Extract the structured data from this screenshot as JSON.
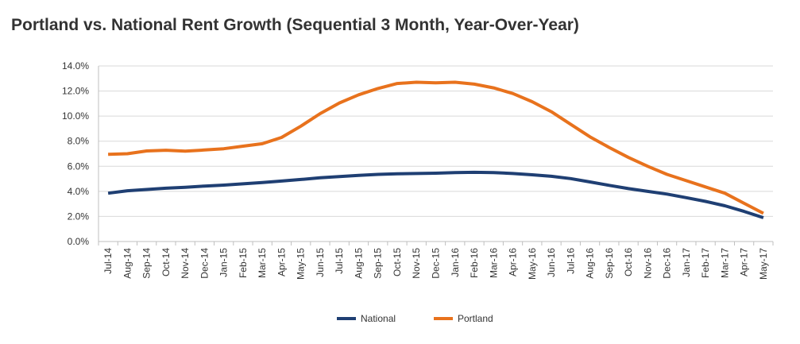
{
  "chart_data": {
    "type": "line",
    "title": "Portland vs. National Rent Growth (Sequential 3 Month, Year-Over-Year)",
    "xlabel": "",
    "ylabel": "",
    "ylim": [
      0,
      14
    ],
    "y_ticks": [
      0,
      2,
      4,
      6,
      8,
      10,
      12,
      14
    ],
    "y_tick_labels": [
      "0.0%",
      "2.0%",
      "4.0%",
      "6.0%",
      "8.0%",
      "10.0%",
      "12.0%",
      "14.0%"
    ],
    "grid": true,
    "legend_position": "bottom-center",
    "categories": [
      "Jul-14",
      "Aug-14",
      "Sep-14",
      "Oct-14",
      "Nov-14",
      "Dec-14",
      "Jan-15",
      "Feb-15",
      "Mar-15",
      "Apr-15",
      "May-15",
      "Jun-15",
      "Jul-15",
      "Aug-15",
      "Sep-15",
      "Oct-15",
      "Nov-15",
      "Dec-15",
      "Jan-16",
      "Feb-16",
      "Mar-16",
      "Apr-16",
      "May-16",
      "Jun-16",
      "Jul-16",
      "Aug-16",
      "Sep-16",
      "Oct-16",
      "Nov-16",
      "Dec-16",
      "Jan-17",
      "Feb-17",
      "Mar-17",
      "Apr-17",
      "May-17"
    ],
    "series": [
      {
        "name": "National",
        "color": "#1f3f73",
        "values": [
          3.85,
          4.05,
          4.15,
          4.25,
          4.32,
          4.42,
          4.5,
          4.6,
          4.7,
          4.82,
          4.95,
          5.08,
          5.18,
          5.28,
          5.35,
          5.4,
          5.42,
          5.45,
          5.5,
          5.52,
          5.5,
          5.42,
          5.32,
          5.2,
          5.02,
          4.75,
          4.48,
          4.22,
          4.0,
          3.78,
          3.5,
          3.2,
          2.85,
          2.4,
          1.9
        ]
      },
      {
        "name": "Portland",
        "color": "#e8721d",
        "values": [
          6.95,
          7.0,
          7.22,
          7.28,
          7.2,
          7.3,
          7.4,
          7.6,
          7.8,
          8.3,
          9.2,
          10.2,
          11.05,
          11.7,
          12.2,
          12.6,
          12.7,
          12.65,
          12.7,
          12.55,
          12.25,
          11.8,
          11.15,
          10.35,
          9.35,
          8.35,
          7.5,
          6.7,
          6.0,
          5.35,
          4.85,
          4.35,
          3.85,
          3.05,
          2.25
        ]
      }
    ]
  }
}
